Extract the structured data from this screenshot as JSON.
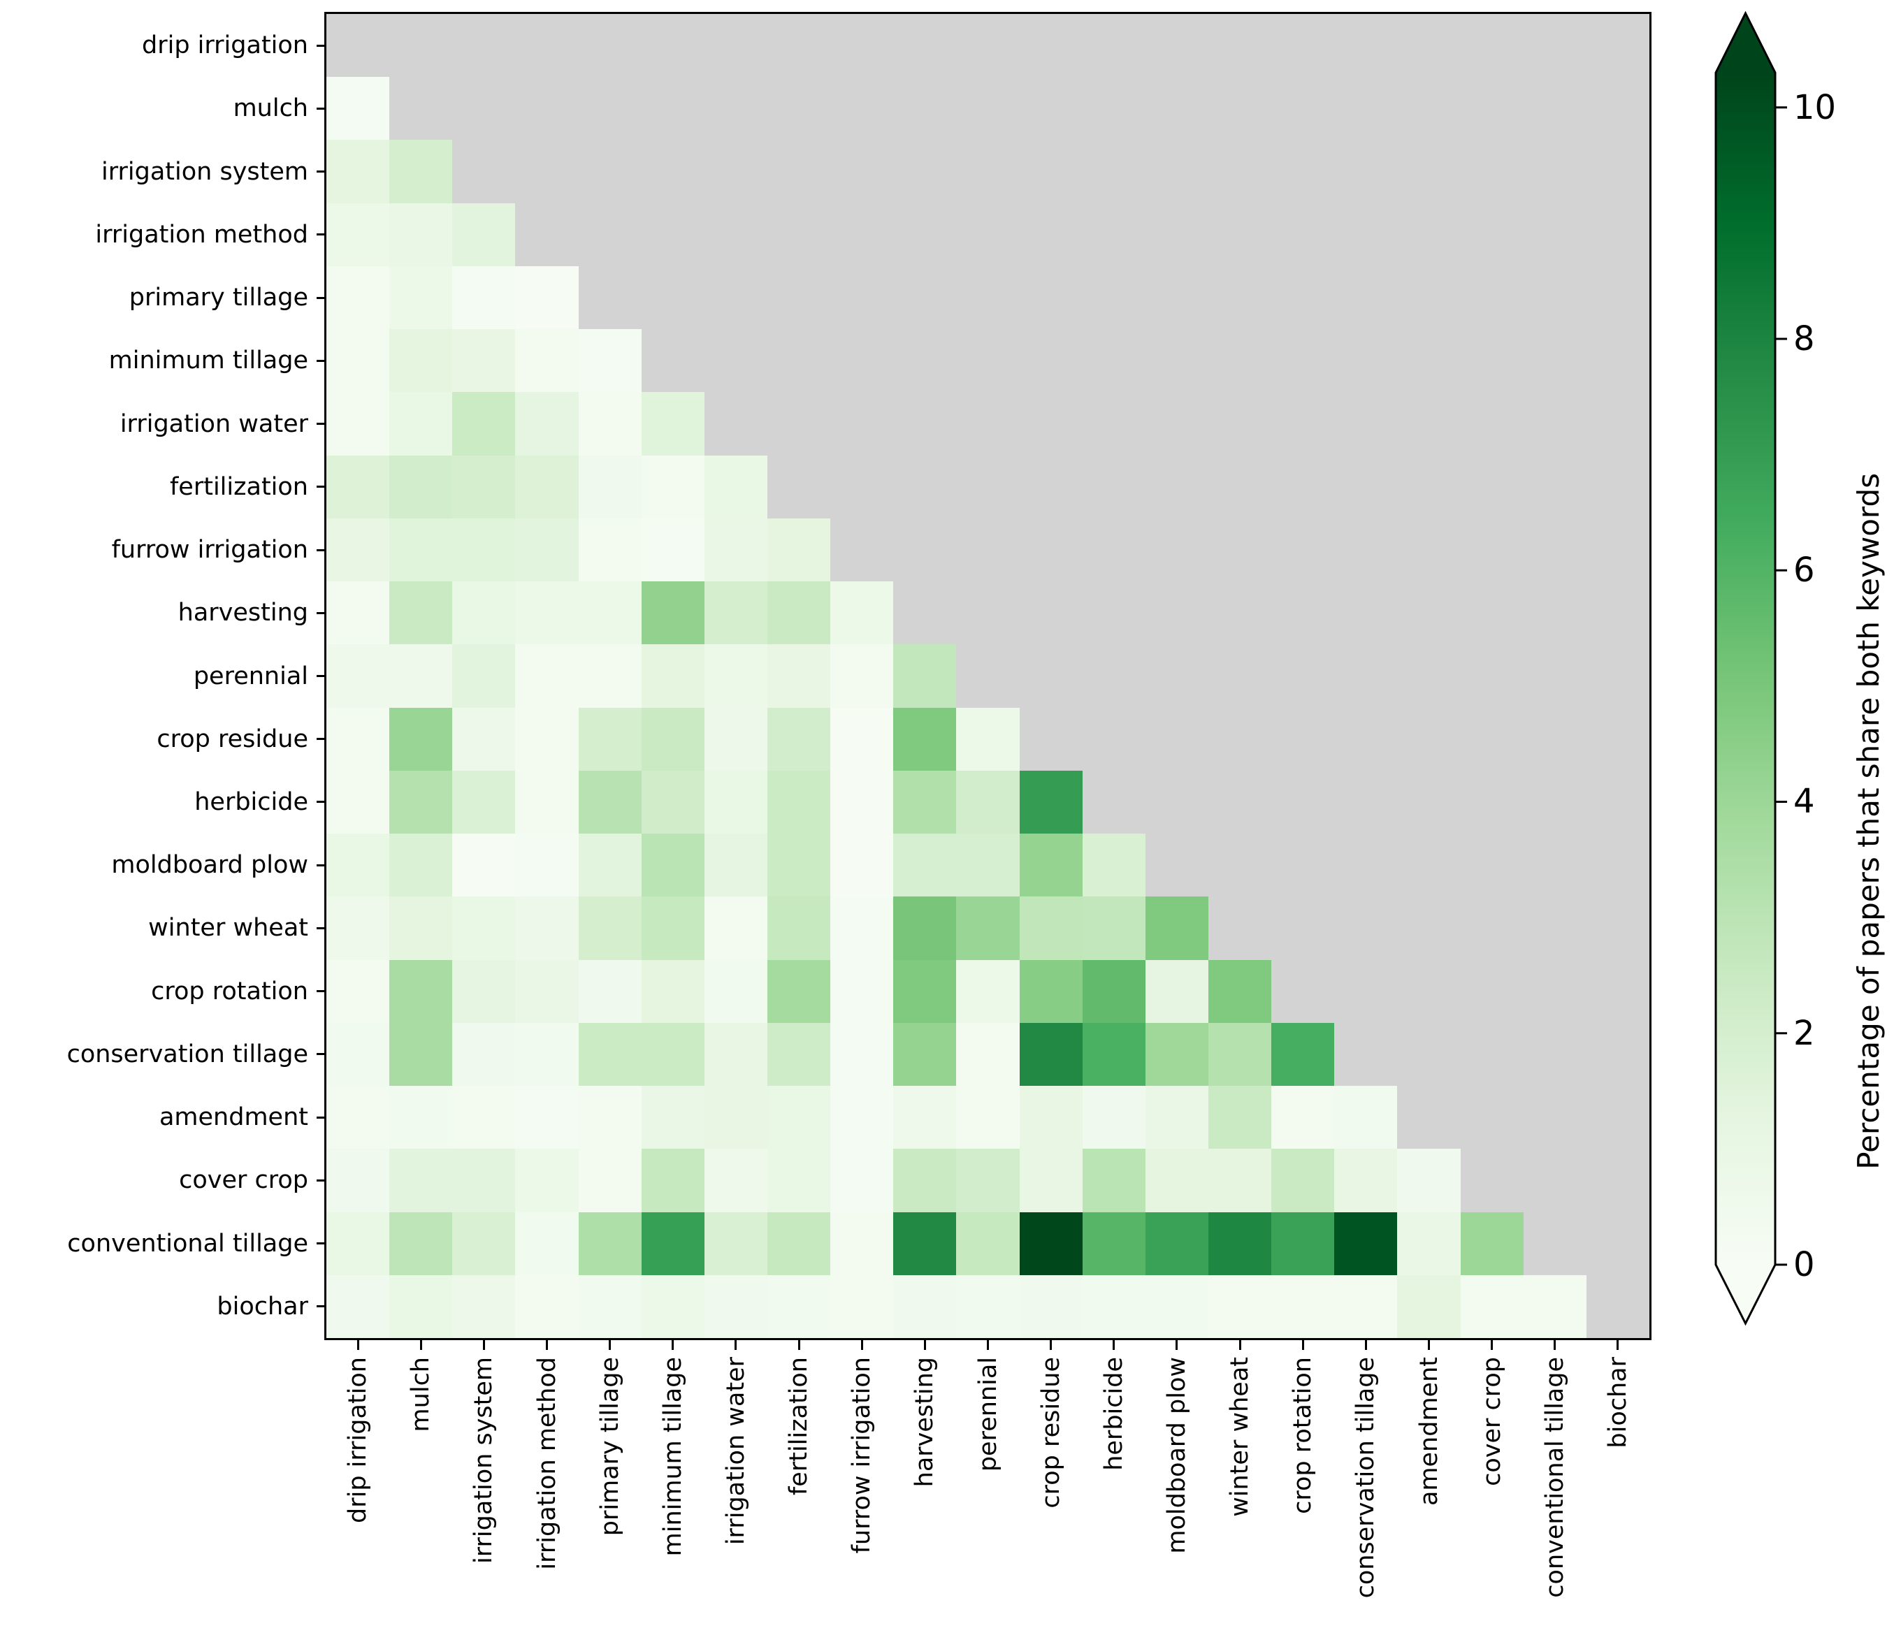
{
  "chart_data": {
    "type": "heatmap",
    "title": "",
    "description": "Lower-triangular co-occurrence heatmap of paper keywords",
    "categories": [
      "drip irrigation",
      "mulch",
      "irrigation system",
      "irrigation method",
      "primary tillage",
      "minimum tillage",
      "irrigation water",
      "fertilization",
      "furrow irrigation",
      "harvesting",
      "perennial",
      "crop residue",
      "herbicide",
      "moldboard plow",
      "winter wheat",
      "crop rotation",
      "conservation tillage",
      "amendment",
      "cover crop",
      "conventional tillage",
      "biochar"
    ],
    "matrix_lower_triangle": [
      [],
      [
        0.2
      ],
      [
        1.3,
        2.0
      ],
      [
        0.8,
        0.9,
        1.4
      ],
      [
        0.3,
        0.8,
        0.2,
        0.1
      ],
      [
        0.3,
        1.3,
        1.1,
        0.3,
        0.2
      ],
      [
        0.3,
        1.0,
        2.4,
        1.2,
        0.3,
        1.5
      ],
      [
        1.6,
        2.1,
        2.0,
        1.6,
        0.5,
        0.3,
        1.0
      ],
      [
        1.1,
        1.5,
        1.5,
        1.4,
        0.3,
        0.2,
        0.9,
        1.3
      ],
      [
        0.3,
        2.5,
        1.0,
        0.8,
        0.8,
        4.3,
        2.0,
        2.5,
        0.8
      ],
      [
        0.6,
        0.6,
        1.4,
        0.3,
        0.3,
        1.3,
        0.8,
        1.1,
        0.3,
        2.7
      ],
      [
        0.3,
        4.1,
        0.7,
        0.3,
        2.0,
        2.5,
        0.7,
        2.1,
        0.1,
        4.8,
        0.8
      ],
      [
        0.3,
        3.2,
        1.7,
        0.3,
        3.1,
        2.2,
        1.0,
        2.4,
        0.1,
        3.3,
        2.1,
        7.0
      ],
      [
        1.0,
        1.7,
        0.1,
        0.2,
        1.4,
        3.0,
        1.2,
        2.4,
        0.1,
        1.9,
        1.9,
        4.2,
        1.8
      ],
      [
        0.6,
        1.3,
        1.0,
        0.7,
        2.0,
        2.6,
        0.3,
        2.6,
        0.2,
        5.0,
        4.1,
        2.8,
        2.7,
        4.8
      ],
      [
        0.3,
        3.6,
        1.2,
        0.9,
        0.5,
        1.3,
        0.4,
        3.7,
        0.2,
        4.8,
        0.8,
        4.6,
        5.6,
        1.2,
        4.8
      ],
      [
        0.4,
        3.6,
        0.5,
        0.4,
        2.4,
        2.4,
        1.1,
        2.3,
        0.2,
        4.2,
        0.3,
        7.8,
        6.2,
        3.9,
        3.2,
        6.3
      ],
      [
        0.3,
        0.4,
        0.3,
        0.2,
        0.3,
        0.9,
        1.1,
        1.0,
        0.2,
        0.6,
        0.3,
        1.1,
        0.5,
        0.9,
        2.5,
        0.3,
        0.4
      ],
      [
        0.5,
        1.4,
        1.4,
        0.8,
        0.3,
        2.6,
        0.6,
        1.0,
        0.2,
        2.5,
        2.1,
        1.1,
        3.0,
        1.3,
        1.3,
        2.5,
        1.1,
        0.5
      ],
      [
        1.0,
        2.9,
        1.8,
        0.4,
        3.4,
        6.9,
        1.8,
        2.6,
        0.3,
        7.8,
        2.6,
        10.2,
        5.9,
        6.8,
        7.9,
        6.8,
        9.8,
        0.9,
        4.0
      ],
      [
        0.5,
        1.0,
        0.7,
        0.3,
        0.4,
        0.8,
        0.5,
        0.4,
        0.3,
        0.5,
        0.4,
        0.5,
        0.4,
        0.4,
        0.3,
        0.3,
        0.3,
        1.3,
        0.3,
        0.3
      ]
    ],
    "colorbar": {
      "label": "Percentage of papers that share both keywords",
      "ticks": [
        0,
        2,
        4,
        6,
        8,
        10
      ],
      "vmin": 0,
      "vmax": 10.3,
      "extend": "both",
      "colormap": "Greens"
    },
    "colormap_stops": [
      "#f7fcf5",
      "#e5f5e0",
      "#c7e9c0",
      "#a1d99b",
      "#74c476",
      "#41ab5d",
      "#238b45",
      "#006d2c",
      "#00441b"
    ],
    "masked_color": "#d3d3d3",
    "axis_color": "#000000",
    "background": "#ffffff",
    "legend_position": "right-colorbar",
    "grid": false
  }
}
